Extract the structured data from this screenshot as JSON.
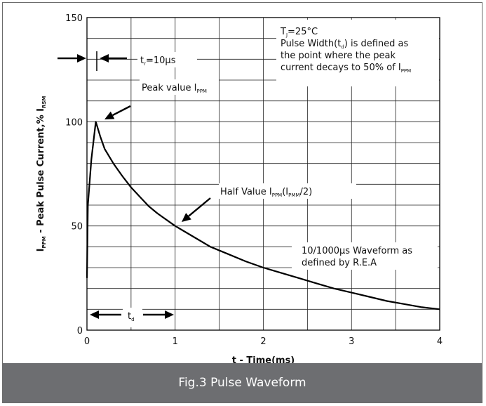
{
  "caption": "Fig.3 Pulse Waveform",
  "chart_data": {
    "type": "line",
    "title": "",
    "xlabel": "t - Time(ms)",
    "ylabel": {
      "prefix": "I",
      "prefix_sub": "PPM",
      "middle": " - Peak Pulse Current,% I",
      "suffix_sub": "RSM"
    },
    "xlim": [
      0,
      4
    ],
    "ylim": [
      0,
      150
    ],
    "x_ticks": [
      "0",
      "1",
      "2",
      "3",
      "4"
    ],
    "y_ticks": [
      "0",
      "50",
      "100",
      "150"
    ],
    "grid": true,
    "series": [
      {
        "name": "",
        "x": [
          0,
          0.01,
          0.05,
          0.1,
          0.15,
          0.2,
          0.3,
          0.4,
          0.5,
          0.6,
          0.7,
          0.8,
          0.9,
          1.0,
          1.2,
          1.4,
          1.6,
          1.8,
          2.0,
          2.2,
          2.4,
          2.6,
          2.8,
          3.0,
          3.2,
          3.4,
          3.6,
          3.8,
          4.0
        ],
        "y": [
          25,
          60,
          82,
          100,
          93,
          87,
          80,
          74,
          68.5,
          64,
          59.5,
          56,
          53,
          50,
          45,
          40,
          36.5,
          33,
          30,
          27.5,
          25,
          22.5,
          20,
          18,
          16,
          14,
          12.5,
          11,
          10
        ]
      }
    ],
    "annotations": {
      "conditions": {
        "t_main": "T",
        "t_sub": "J",
        "t_rest": "=25°C",
        "line2_pre": "Pulse Width(t",
        "line2_sub": "d",
        "line2_post": ") is defined as",
        "line3": "the point where the peak",
        "line4_pre": "current decays to 50% of I",
        "line4_sub": "PPM"
      },
      "rise_time": {
        "main": "t",
        "sub": "r",
        "rest": "=10µs"
      },
      "peak": {
        "main": "Peak value I",
        "sub": "PPM"
      },
      "half": {
        "pre": "Half Value I",
        "sub1": "PPM",
        "mid": "(I",
        "sub2": "PMM",
        "post": "/2)"
      },
      "waveform_line1": "10/1000µs Waveform as",
      "waveform_line2": "defined by R.E.A",
      "td": {
        "main": "t",
        "sub": "d"
      }
    }
  }
}
